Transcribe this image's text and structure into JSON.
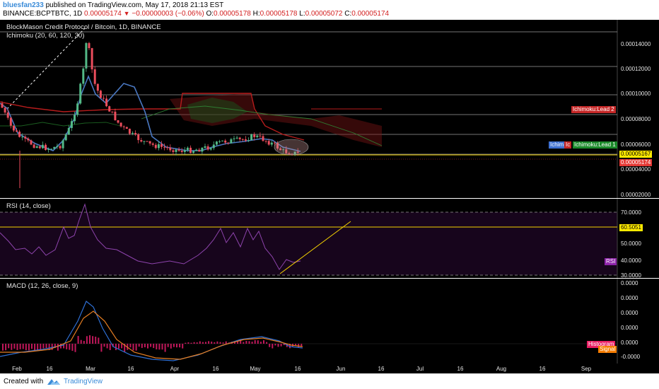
{
  "header": {
    "username": "bluesfan233",
    "published_text": " published on TradingView.com, May 17, 2018 21:13 EST",
    "symbol_line": "BINANCE:BCPTBTC, 1D",
    "open_value": "0.00005174",
    "change_arrow": "▼",
    "change_value": "−0.00000003 (−0.06%)",
    "o_label": "O:",
    "o_value": "0.00005178",
    "h_label": "H:",
    "h_value": "0.00005178",
    "l_label": "L:",
    "l_value": "0.00005072",
    "c_label": "C:",
    "c_value": "0.00005174"
  },
  "main_panel": {
    "title": "BlockMason Credit Protocol / Bitcoin, 1D, BINANCE",
    "indicator": "Ichimoku (20, 60, 120, 30)",
    "y_labels": [
      "0.00014000",
      "0.00012000",
      "0.00010000",
      "0.00008000",
      "0.00006000",
      "0.00004000",
      "0.00002000"
    ],
    "tag_lead2": "Ichimoku:Lead 2",
    "tag_ichim": "Ichim",
    "tag_ic": "Ic",
    "tag_lead1": "Ichimoku:Lead 1",
    "price_tag_yellow": "0.00005167",
    "price_tag_red": "0.00005174"
  },
  "rsi_panel": {
    "title": "RSI (14, close)",
    "y_labels": [
      "70.0000",
      "50.0000",
      "40.0000",
      "30.0000"
    ],
    "tag_value": "60.5051",
    "tag_rsi": "RSI"
  },
  "macd_panel": {
    "title": "MACD (12, 26, close, 9)",
    "y_labels": [
      "0.0000",
      "0.0000",
      "0.0000",
      "0.0000",
      "0.0000",
      "-0.0000"
    ],
    "tag_histogram": "Histogram",
    "tag_signal": "Signal"
  },
  "x_axis": {
    "labels": [
      "Feb",
      "16",
      "Mar",
      "16",
      "Apr",
      "16",
      "May",
      "16",
      "Jun",
      "16",
      "Jul",
      "16",
      "Aug",
      "16",
      "Sep"
    ]
  },
  "footer": {
    "created_with": "Created with",
    "brand": "TradingView"
  },
  "colors": {
    "background": "#000000",
    "up": "#53b987",
    "down": "#eb4d5c",
    "tenkan": "#4a78c2",
    "kijun": "#b71c1c",
    "rsi_line": "#8e44ad",
    "macd_line": "#2e6fd4",
    "signal_line": "#e67e22",
    "trend_line": "#f5d300"
  }
}
